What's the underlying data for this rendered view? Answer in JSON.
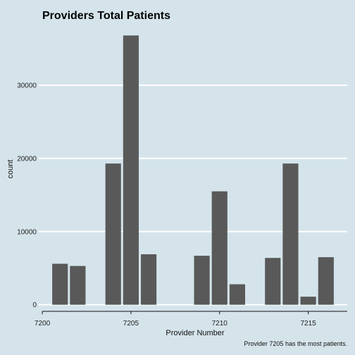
{
  "chart_data": {
    "type": "bar",
    "title": "Providers Total Patients",
    "xlabel": "Provider Number",
    "ylabel": "count",
    "caption": "Provider 7205 has the most patients.",
    "x_ticks": [
      7200,
      7205,
      7210,
      7215
    ],
    "y_ticks": [
      0,
      10000,
      20000,
      30000
    ],
    "xlim": [
      7199.8,
      7217.2
    ],
    "ylim": [
      -900,
      37800
    ],
    "grid": "horizontal",
    "colors": {
      "background": "#d5e4eb",
      "bar": "#595959",
      "grid": "#ffffff"
    },
    "bars": [
      {
        "x": 7201,
        "value": 5600
      },
      {
        "x": 7202,
        "value": 5300
      },
      {
        "x": 7204,
        "value": 19300
      },
      {
        "x": 7205,
        "value": 36800
      },
      {
        "x": 7206,
        "value": 6900
      },
      {
        "x": 7209,
        "value": 6700
      },
      {
        "x": 7210,
        "value": 15500
      },
      {
        "x": 7211,
        "value": 2800
      },
      {
        "x": 7213,
        "value": 6400
      },
      {
        "x": 7214,
        "value": 19300
      },
      {
        "x": 7215,
        "value": 1100
      },
      {
        "x": 7216,
        "value": 6500
      }
    ]
  }
}
